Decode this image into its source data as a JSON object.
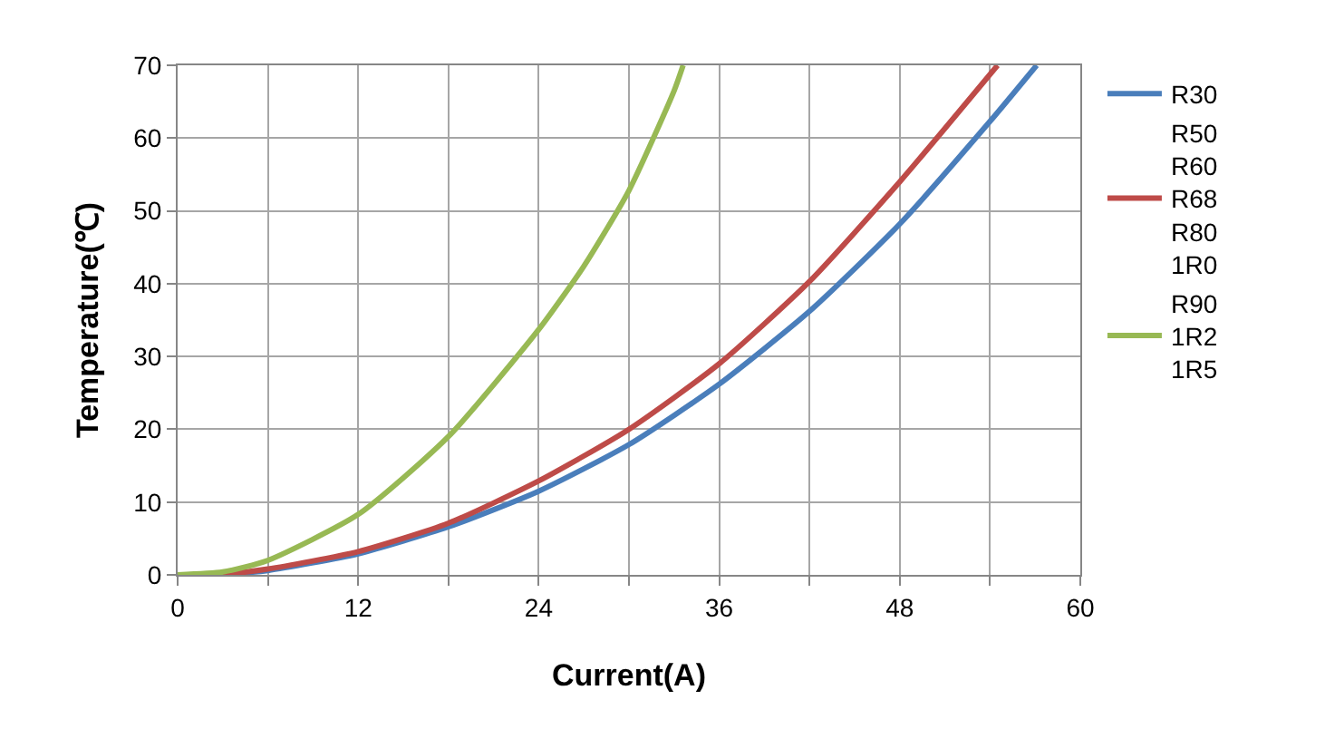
{
  "chart_data": {
    "type": "line",
    "xlabel": "Current(A)",
    "ylabel": "Temperature(℃)",
    "xlim": [
      0,
      60
    ],
    "xticks": [
      0,
      {
        "value": 6,
        "label": null
      },
      12,
      {
        "value": 18,
        "label": null
      },
      24,
      {
        "value": 30,
        "label": null
      },
      36,
      {
        "value": 42,
        "label": null
      },
      48,
      {
        "value": 54,
        "label": null
      },
      60
    ],
    "ylim": [
      0,
      70
    ],
    "yticks": [
      0,
      10,
      20,
      30,
      40,
      50,
      60,
      70
    ],
    "grid": true,
    "legend": "right",
    "marker": "none",
    "line_style": "solid",
    "series": [
      {
        "name": "R30",
        "color": "#4a7ebb",
        "x": [
          0,
          3,
          6,
          12,
          18,
          24,
          30,
          36,
          42,
          48,
          54,
          57.1
        ],
        "values": [
          0,
          0.1,
          0.6,
          2.9,
          6.6,
          11.5,
          17.9,
          26.2,
          36.2,
          48.2,
          62.3,
          70
        ]
      },
      {
        "name": "R50\nR60\nR68\nR80\n1R0",
        "color": "#be4b48",
        "x": [
          0,
          3,
          6,
          12,
          18,
          24,
          30,
          36,
          42,
          48,
          54.5
        ],
        "values": [
          0,
          0.1,
          0.8,
          3.2,
          7.1,
          12.9,
          20,
          29,
          40.3,
          54,
          70
        ]
      },
      {
        "name": "R90\n1R2\n1R5",
        "color": "#98b954",
        "x": [
          0,
          3,
          6,
          12,
          18,
          24,
          27,
          30,
          33,
          33.6
        ],
        "values": [
          0,
          0.4,
          2,
          8.3,
          19,
          33.7,
          42.4,
          52.8,
          66.5,
          70
        ]
      }
    ]
  }
}
